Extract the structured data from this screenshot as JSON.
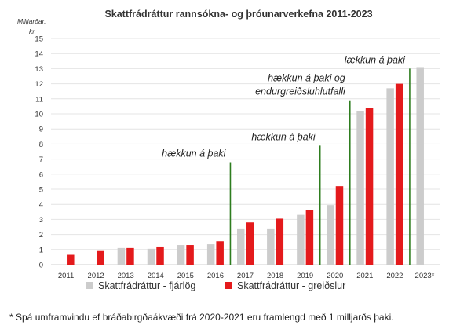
{
  "chart_data": {
    "type": "bar",
    "title": "Skattfrádráttur rannsókna- og þróunarverkefna 2011-2023",
    "ylabel_lines": [
      "Milljarðar.",
      "kr."
    ],
    "ylim": [
      0,
      15
    ],
    "yticks": [
      0,
      1,
      2,
      3,
      4,
      5,
      6,
      7,
      8,
      9,
      10,
      11,
      12,
      13,
      14,
      15
    ],
    "grid": true,
    "legend_position": "bottom",
    "categories": [
      "2011",
      "2012",
      "2013",
      "2014",
      "2015",
      "2016",
      "2017",
      "2018",
      "2019",
      "2020",
      "2021",
      "2022",
      "2023*"
    ],
    "series": [
      {
        "name": "Skattfrádráttur - fjárlög",
        "color": "#cccccc",
        "values": [
          null,
          null,
          1.1,
          1.05,
          1.3,
          1.35,
          2.35,
          2.35,
          3.3,
          3.95,
          10.2,
          11.7,
          13.1
        ]
      },
      {
        "name": "Skattfrádráttur - greiðslur",
        "color": "#e41a1c",
        "values": [
          0.65,
          0.9,
          1.1,
          1.2,
          1.3,
          1.55,
          2.8,
          3.05,
          3.6,
          5.2,
          10.4,
          12.0,
          null
        ]
      }
    ],
    "markers": [
      {
        "after_category": "2016",
        "value": 6.8,
        "label_lines": [
          "hækkun á þaki"
        ],
        "color": "#2e7d1f"
      },
      {
        "after_category": "2019",
        "value": 7.9,
        "label_lines": [
          "hækkun á þaki"
        ],
        "color": "#2e7d1f"
      },
      {
        "after_category": "2020",
        "value": 10.9,
        "label_lines": [
          "hækkun á þaki og",
          "endurgreiðsluhlutfalli"
        ],
        "color": "#2e7d1f"
      },
      {
        "after_category": "2022",
        "value": 13.0,
        "label_lines": [
          "lækkun á þaki"
        ],
        "color": "#2e7d1f"
      }
    ]
  },
  "footnote": "* Spá umframvindu ef bráðabirgðaákvæði frá 2020-2021 eru framlengd með 1 milljarðs þaki."
}
